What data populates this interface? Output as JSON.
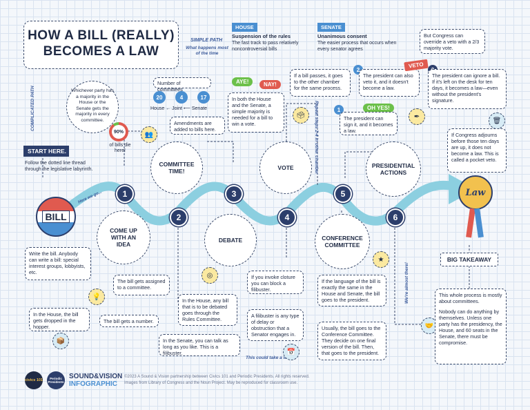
{
  "title": {
    "line1": "HOW A BILL (REALLY)",
    "line2": "BECOMES A LAW"
  },
  "paths": {
    "simple": "SIMPLE PATH",
    "simple_sub": "What happens most of the time",
    "complicated": "COMPLICATED PATH"
  },
  "house": {
    "tag": "HOUSE",
    "heading": "Suspension of the rules",
    "text": "The fast track to pass relatively noncontroversial bills"
  },
  "senate": {
    "tag": "SENATE",
    "heading": "Unanimous consent",
    "text": "The easier process that occurs when every senator agrees"
  },
  "override": "But Congress can override a veto with a 2/3 majority vote.",
  "start": {
    "label": "START HERE.",
    "text": "Follow the dotted line thread through the legislative labyrinth."
  },
  "bill_badge": "BILL",
  "here_we_go": "Here we go...",
  "law_badge": "Law",
  "majority": "Whichever party has a majority in the House or the Senate gets the majority in every committee.",
  "stat": {
    "value": "90%",
    "caption": "of bills die here!"
  },
  "committees": {
    "title": "Number of committees",
    "house": "20",
    "joint": "4",
    "senate": "17",
    "house_label": "House",
    "joint_label": "Joint",
    "senate_label": "Senate"
  },
  "amendments": "Amendments are added to bills here.",
  "vote_bubbles": {
    "aye": "AYE!",
    "nay": "NAY!"
  },
  "vote_text": "In both the House and the Senate, a simple majority is needed for a bill to win a vote.",
  "other_chamber": "If a bill passes, it goes to the other chamber for the same process.",
  "repeat_label": "Repeat steps 2-4 in other chamber",
  "veto_tag": "VETO",
  "oh_yes": "OH YES!",
  "president_veto": "The president can also veto it, and it doesn't become a law.",
  "president_sign": "The president can sign it, and it becomes a law.",
  "president_ignore": "The president can ignore a bill. If it's left on the desk for ten days, it becomes a law—even without the president's signature.",
  "pocket_veto": "If Congress adjourns before those ten days are up, it does not become a law. This is called a pocket veto.",
  "steps": {
    "s1": "1",
    "s2": "2",
    "s3": "3",
    "s4": "4",
    "s5": "5",
    "s6": "6",
    "idea": "COME UP WITH AN IDEA",
    "committee": "COMMITTEE TIME!",
    "debate": "DEBATE",
    "vote": "VOTE",
    "conference": "CONFERENCE COMMITTEE",
    "presidential": "PRESIDENTIAL ACTIONS"
  },
  "mini": {
    "m1": "1",
    "m2": "2",
    "m3": "3"
  },
  "write_bill": "Write the bill. Anybody can write a bill: special interest groups, lobbyists, etc.",
  "hopper": "In the House, the bill gets dropped in the hopper.",
  "number": "The bill gets a number.",
  "assigned": "The bill gets assigned to a committee.",
  "rules": "In the House, any bill that is to be debated goes through the Rules Committee.",
  "senate_talk": "In the Senate, you can talk as long as you like. This is a filibuster.",
  "cloture": "If you invoke cloture you can block a filibuster.",
  "filibuster": "A filibuster is any type of delay or obstruction that a Senator engages in.",
  "take_while": "This could take a while.",
  "same_language": "If the language of the bill is exactly the same in the House and Senate, the bill goes to the president.",
  "conference_text": "Usually, the bill goes to the Conference Committee. They decide on one final version of the bill. Then, that goes to the president.",
  "almost_there": "We're almost there!",
  "takeaway": {
    "title": "BIG TAKEAWAY",
    "p1": "This whole process is mostly about committees.",
    "p2": "Nobody can do anything by themselves. Unless one party has the presidency, the House, and 60 seats in the Senate, there must be compromise."
  },
  "footer": {
    "brand1": "SOUND&VISION",
    "brand2": "INFOGRAPHIC",
    "line1": "©2023 A Sound & Vision partnership between Civics 101 and Periodic Presidents. All rights reserved.",
    "line2": "Images from Library of Congress and the Noun Project. May be reproduced for classroom use.",
    "logo1": "civics 101",
    "logo2": "Periodic Presidents"
  },
  "colors": {
    "navy": "#2c3e6b",
    "teal": "#8ccfe0",
    "red": "#e05a4f",
    "green": "#6cc04a",
    "blue": "#4a8fd1",
    "gold": "#f2c14e"
  }
}
